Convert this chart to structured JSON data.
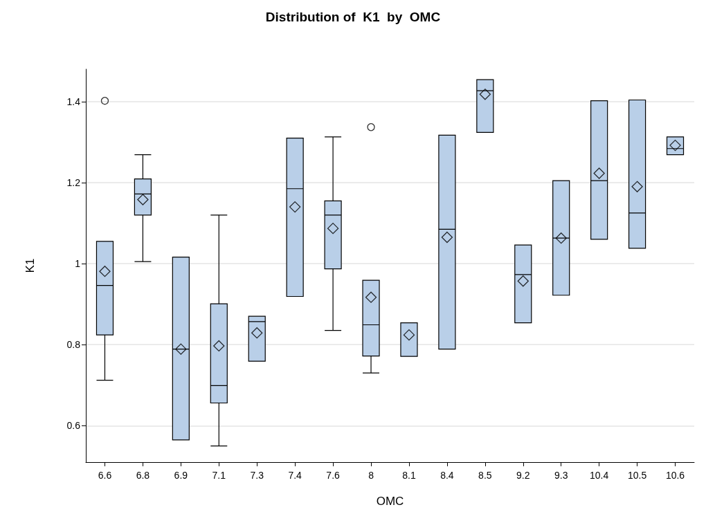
{
  "chart_data": {
    "type": "box",
    "title": "Distribution of  K1  by  OMC",
    "xlabel": "OMC",
    "ylabel": "K1",
    "categories": [
      "6.6",
      "6.8",
      "6.9",
      "7.1",
      "7.3",
      "7.4",
      "7.6",
      "8",
      "8.1",
      "8.4",
      "8.5",
      "9.2",
      "9.3",
      "10.4",
      "10.5",
      "10.6"
    ],
    "color": "#b9cfe8",
    "boxes": [
      {
        "low": 0.712,
        "q1": 0.824,
        "median": 0.946,
        "q3": 1.055,
        "high": 1.055,
        "mean": 0.981,
        "outliers": [
          1.402
        ]
      },
      {
        "low": 1.005,
        "q1": 1.12,
        "median": 1.172,
        "q3": 1.209,
        "high": 1.269,
        "mean": 1.158
      },
      {
        "low": 0.565,
        "q1": 0.565,
        "median": 0.789,
        "q3": 1.016,
        "high": 1.016,
        "mean": 0.789
      },
      {
        "low": 0.55,
        "q1": 0.656,
        "median": 0.699,
        "q3": 0.901,
        "high": 1.12,
        "mean": 0.797
      },
      {
        "low": 0.759,
        "q1": 0.759,
        "median": 0.857,
        "q3": 0.87,
        "high": 0.87,
        "mean": 0.829
      },
      {
        "low": 0.919,
        "q1": 0.919,
        "median": 1.185,
        "q3": 1.31,
        "high": 1.31,
        "mean": 1.14
      },
      {
        "low": 0.835,
        "q1": 0.987,
        "median": 1.12,
        "q3": 1.155,
        "high": 1.313,
        "mean": 1.087
      },
      {
        "low": 0.73,
        "q1": 0.772,
        "median": 0.849,
        "q3": 0.959,
        "high": 0.959,
        "mean": 0.917,
        "outliers": [
          1.337
        ]
      },
      {
        "low": 0.771,
        "q1": 0.771,
        "median": 0.854,
        "q3": 0.854,
        "high": 0.854,
        "mean": 0.824
      },
      {
        "low": 0.789,
        "q1": 0.789,
        "median": 1.085,
        "q3": 1.317,
        "high": 1.317,
        "mean": 1.065
      },
      {
        "low": 1.324,
        "q1": 1.324,
        "median": 1.427,
        "q3": 1.454,
        "high": 1.454,
        "mean": 1.418
      },
      {
        "low": 0.854,
        "q1": 0.854,
        "median": 0.973,
        "q3": 1.046,
        "high": 1.046,
        "mean": 0.957
      },
      {
        "low": 0.922,
        "q1": 0.922,
        "median": 1.063,
        "q3": 1.205,
        "high": 1.205,
        "mean": 1.063
      },
      {
        "low": 1.06,
        "q1": 1.06,
        "median": 1.205,
        "q3": 1.402,
        "high": 1.402,
        "mean": 1.223
      },
      {
        "low": 1.038,
        "q1": 1.038,
        "median": 1.125,
        "q3": 1.404,
        "high": 1.404,
        "mean": 1.19
      },
      {
        "low": 1.269,
        "q1": 1.269,
        "median": 1.284,
        "q3": 1.313,
        "high": 1.313,
        "mean": 1.292
      }
    ],
    "ylim": [
      0.51,
      1.48
    ],
    "yticks": [
      0.6,
      0.8,
      1,
      1.2,
      1.4
    ],
    "grid": "y",
    "legend": false
  }
}
